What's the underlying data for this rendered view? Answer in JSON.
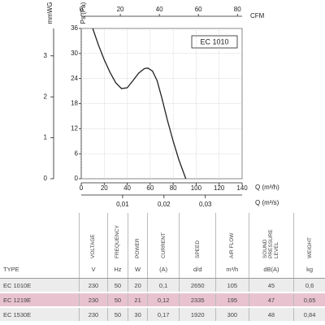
{
  "chart_data": {
    "type": "line",
    "label": "EC 1010",
    "ylabel": "Ps (Pa)",
    "ylim": [
      0,
      36
    ],
    "yticks": [
      0,
      6,
      12,
      18,
      24,
      30,
      36
    ],
    "y2label": "mmWG",
    "y2lim": [
      0,
      3.67
    ],
    "y2ticks": [
      0,
      1,
      2,
      3
    ],
    "xlabel": "Q (m³/h)",
    "xlim": [
      0,
      140
    ],
    "xticks": [
      0,
      20,
      40,
      60,
      80,
      100,
      120,
      140
    ],
    "x2label": "CFM",
    "x2lim": [
      0,
      82.4
    ],
    "x2ticks": [
      0,
      20,
      40,
      60,
      80
    ],
    "x3label": "Q (m³/s)",
    "x3lim": [
      0,
      0.03889
    ],
    "x3ticks": [
      {
        "value": 0.01,
        "label": "0,01"
      },
      {
        "value": 0.02,
        "label": "0,02"
      },
      {
        "value": 0.03,
        "label": "0,03"
      }
    ],
    "grid": true,
    "color": "#222222",
    "x": [
      10,
      15,
      20,
      25,
      30,
      35,
      40,
      45,
      50,
      55,
      58,
      62,
      66,
      70,
      75,
      80,
      85,
      91
    ],
    "values": [
      36,
      32,
      28.5,
      25.5,
      23,
      21.6,
      21.8,
      23.5,
      25.3,
      26.4,
      26.5,
      25.8,
      23.5,
      19.5,
      14,
      9,
      4.5,
      0
    ]
  },
  "table": {
    "header": [
      "VOLTAGE",
      "FREQUENCY",
      "POWER",
      "CURRENT",
      "SPEED",
      "AIR FLOW",
      "SOUND PRESSURE LEVEL",
      "WEIGHT"
    ],
    "units": [
      "TYPE",
      "V",
      "Hz",
      "W",
      "(A)",
      "d/d",
      "m³/h",
      "dB(A)",
      "kg"
    ],
    "rows": [
      [
        "EC 1010E",
        "230",
        "50",
        "20",
        "0,1",
        "2650",
        "105",
        "45",
        "0,6"
      ],
      [
        "EC 1219E",
        "230",
        "50",
        "21",
        "0,12",
        "2335",
        "195",
        "47",
        "0,65"
      ],
      [
        "EC 1530E",
        "230",
        "50",
        "30",
        "0,17",
        "1920",
        "300",
        "48",
        "0,84"
      ]
    ]
  }
}
